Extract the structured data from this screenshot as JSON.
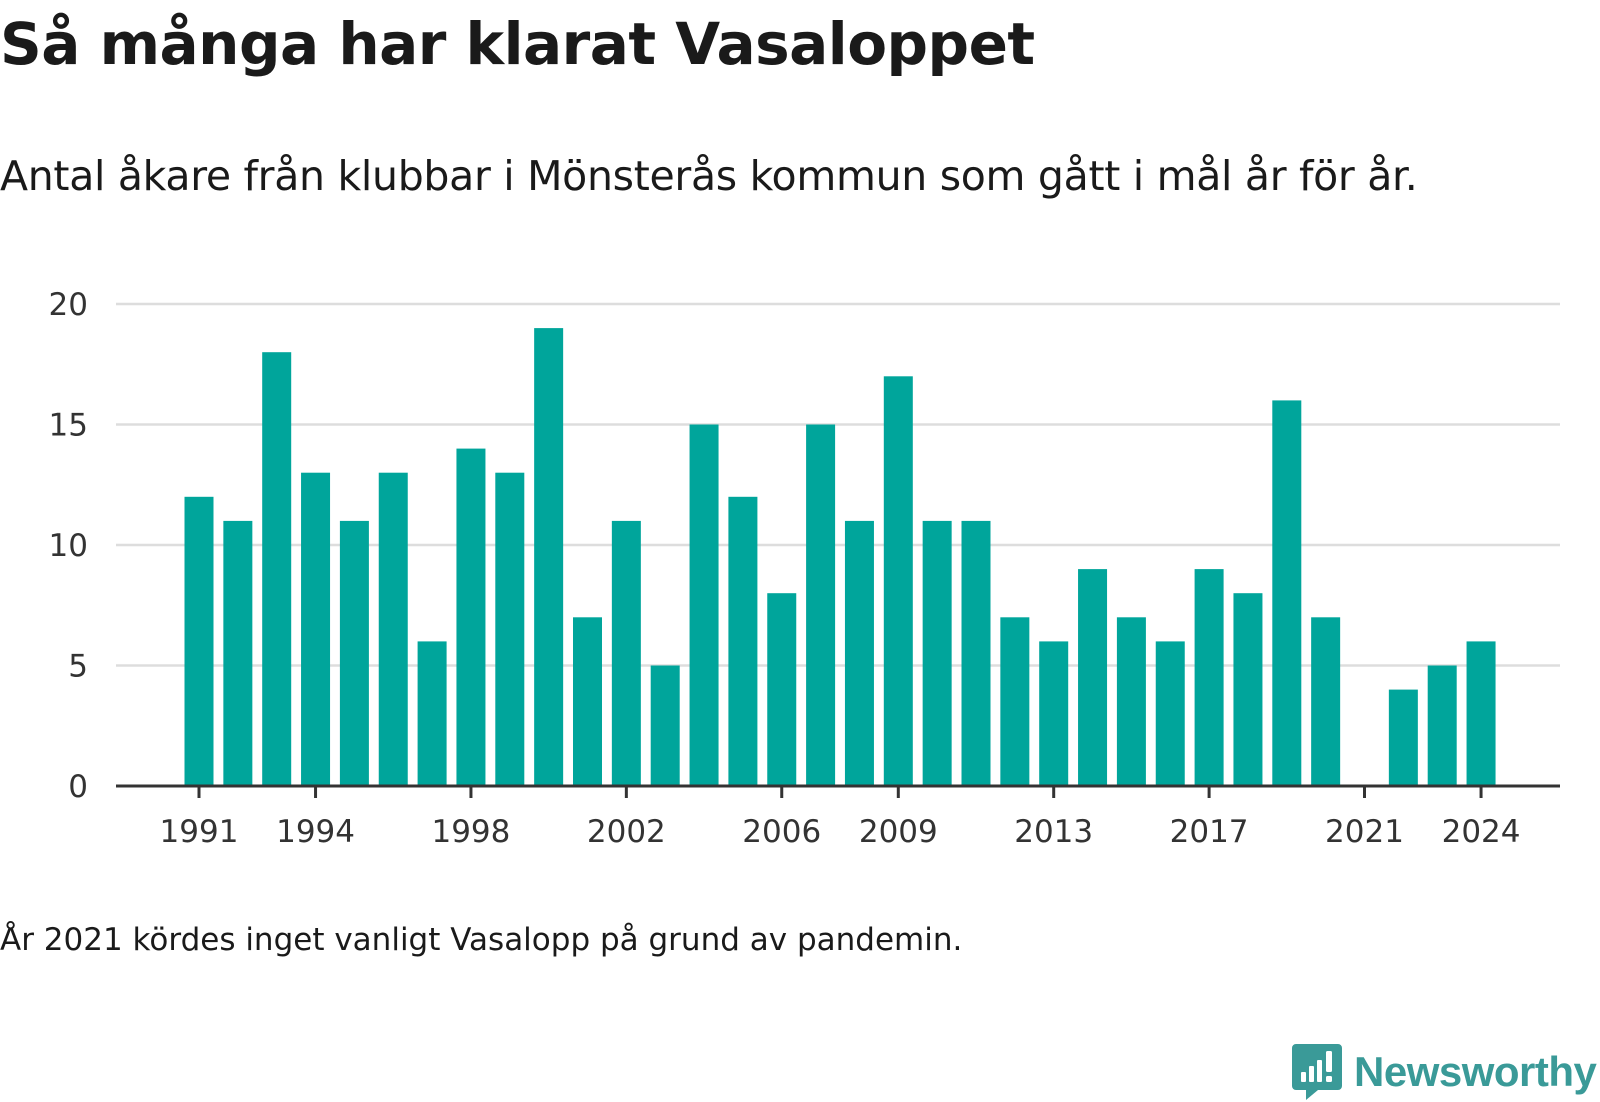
{
  "title": "Så många har klarat Vasaloppet",
  "subtitle": "Antal åkare från klubbar i Mönsterås kommun som gått i mål år för år.",
  "footnote": "År 2021 kördes inget vanligt Vasalopp på grund av pandemin.",
  "brand": {
    "name": "Newsworthy",
    "icon": "newsworthy-logo-icon",
    "color": "#3a9a98"
  },
  "colors": {
    "bar": "#00a59b",
    "grid": "#dddddd",
    "axis": "#333333",
    "text": "#333333"
  },
  "chart_data": {
    "type": "bar",
    "x": [
      1991,
      1992,
      1993,
      1994,
      1995,
      1996,
      1997,
      1998,
      1999,
      2000,
      2001,
      2002,
      2003,
      2004,
      2005,
      2006,
      2007,
      2008,
      2009,
      2010,
      2011,
      2012,
      2013,
      2014,
      2015,
      2016,
      2017,
      2018,
      2019,
      2020,
      2021,
      2022,
      2023,
      2024
    ],
    "values": [
      12,
      11,
      18,
      13,
      11,
      13,
      6,
      14,
      13,
      19,
      7,
      11,
      5,
      15,
      12,
      8,
      15,
      11,
      17,
      11,
      11,
      7,
      6,
      9,
      7,
      6,
      9,
      8,
      16,
      7,
      0,
      4,
      5,
      6
    ],
    "x_ticks": [
      1991,
      1994,
      1998,
      2002,
      2006,
      2009,
      2013,
      2017,
      2021,
      2024
    ],
    "y_ticks": [
      0,
      5,
      10,
      15,
      20
    ],
    "ylim": [
      0,
      20
    ],
    "title": "",
    "xlabel": "",
    "ylabel": "",
    "grid": true,
    "legend": "none"
  }
}
